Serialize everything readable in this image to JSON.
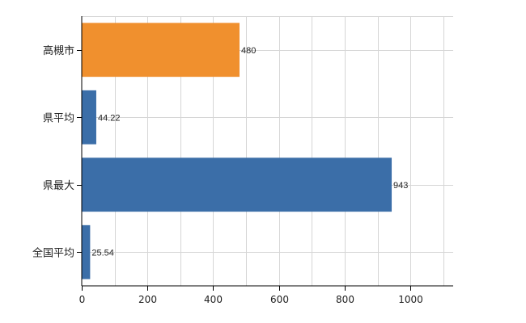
{
  "chart_data": {
    "type": "bar",
    "orientation": "horizontal",
    "categories": [
      "高槻市",
      "県平均",
      "県最大",
      "全国平均"
    ],
    "values": [
      480,
      44.22,
      943,
      25.54
    ],
    "value_labels": [
      "480",
      "44.22",
      "943",
      "25.54"
    ],
    "bar_colors": [
      "#f0902e",
      "#3b6ea8",
      "#3b6ea8",
      "#3b6ea8"
    ],
    "title": "",
    "xlabel": "",
    "ylabel": "",
    "xlim": [
      0,
      1130
    ],
    "x_ticks": [
      0,
      200,
      400,
      600,
      800,
      1000
    ],
    "grid": true,
    "legend": "none"
  }
}
